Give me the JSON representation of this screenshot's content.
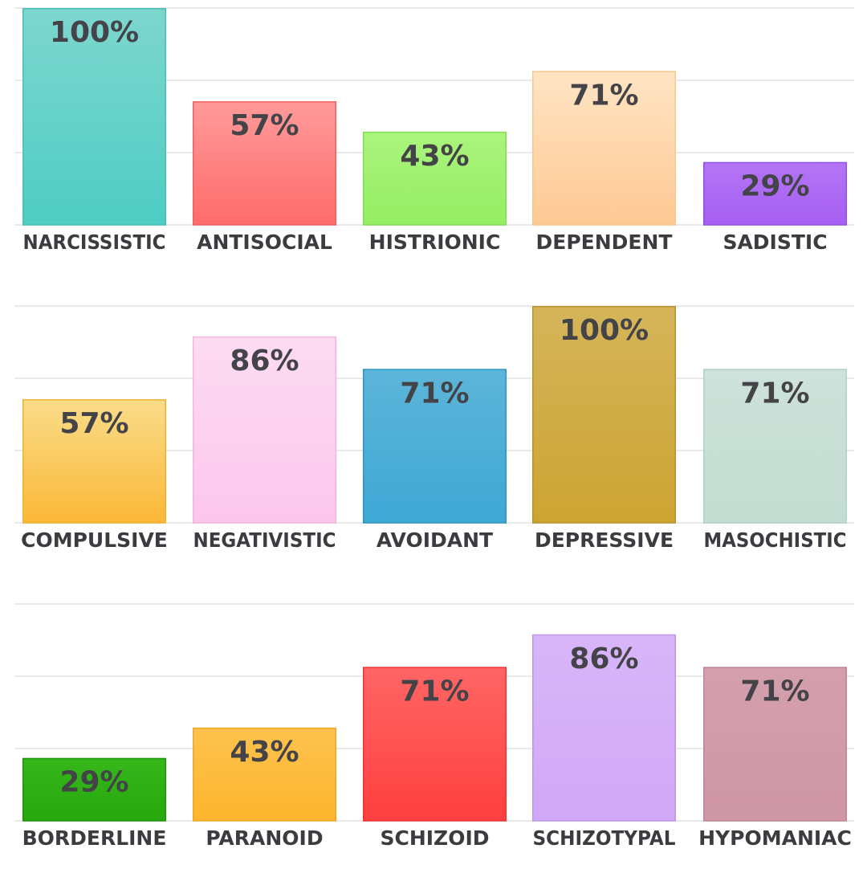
{
  "chart_data": [
    {
      "type": "bar",
      "categories": [
        "NARCISSISTIC",
        "ANTISOCIAL",
        "HISTRIONIC",
        "DEPENDENT",
        "SADISTIC"
      ],
      "values": [
        100,
        57,
        43,
        71,
        29
      ],
      "value_labels": [
        "100%",
        "57%",
        "43%",
        "71%",
        "29%"
      ],
      "ylim": [
        0,
        100
      ],
      "grid": true,
      "colors": [
        {
          "top": "#7dd6ce",
          "bottom": "#4ecdc4",
          "border": "#46c0b7"
        },
        {
          "top": "#ff9a9a",
          "bottom": "#ff6b6b",
          "border": "#f06060"
        },
        {
          "top": "#aaf47e",
          "bottom": "#95ee62",
          "border": "#84dd55"
        },
        {
          "top": "#ffe4c4",
          "bottom": "#ffc994",
          "border": "#f5c890"
        },
        {
          "top": "#b475f5",
          "bottom": "#a55ef2",
          "border": "#9450e0"
        }
      ]
    },
    {
      "type": "bar",
      "categories": [
        "COMPULSIVE",
        "NEGATIVISTIC",
        "AVOIDANT",
        "DEPRESSIVE",
        "MASOCHISTIC"
      ],
      "values": [
        57,
        86,
        71,
        100,
        71
      ],
      "value_labels": [
        "57%",
        "86%",
        "71%",
        "100%",
        "71%"
      ],
      "ylim": [
        0,
        100
      ],
      "grid": true,
      "colors": [
        {
          "top": "#fadc8a",
          "bottom": "#fbb837",
          "border": "#f0b030"
        },
        {
          "top": "#fddcf2",
          "bottom": "#fbc6ec",
          "border": "#f5b5e0"
        },
        {
          "top": "#5db5d9",
          "bottom": "#3ea8d4",
          "border": "#2f95c0"
        },
        {
          "top": "#d5b55a",
          "bottom": "#cca432",
          "border": "#b8922a"
        },
        {
          "top": "#cde2da",
          "bottom": "#c4ddd2",
          "border": "#b5d0c5"
        }
      ]
    },
    {
      "type": "bar",
      "categories": [
        "BORDERLINE",
        "PARANOID",
        "SCHIZOID",
        "SCHIZOTYPAL",
        "HYPOMANIAC"
      ],
      "values": [
        29,
        43,
        71,
        86,
        71
      ],
      "value_labels": [
        "29%",
        "43%",
        "71%",
        "86%",
        "71%"
      ],
      "ylim": [
        0,
        100
      ],
      "grid": true,
      "colors": [
        {
          "top": "#36b71a",
          "bottom": "#26a80e",
          "border": "#1e950a"
        },
        {
          "top": "#fdc24e",
          "bottom": "#fcb52c",
          "border": "#f0a828"
        },
        {
          "top": "#ff6565",
          "bottom": "#ff3f3f",
          "border": "#ee3535"
        },
        {
          "top": "#d8b6f8",
          "bottom": "#d0a8f6",
          "border": "#bf95e8"
        },
        {
          "top": "#d49fad",
          "bottom": "#cf97a6",
          "border": "#bd8596"
        }
      ]
    }
  ]
}
